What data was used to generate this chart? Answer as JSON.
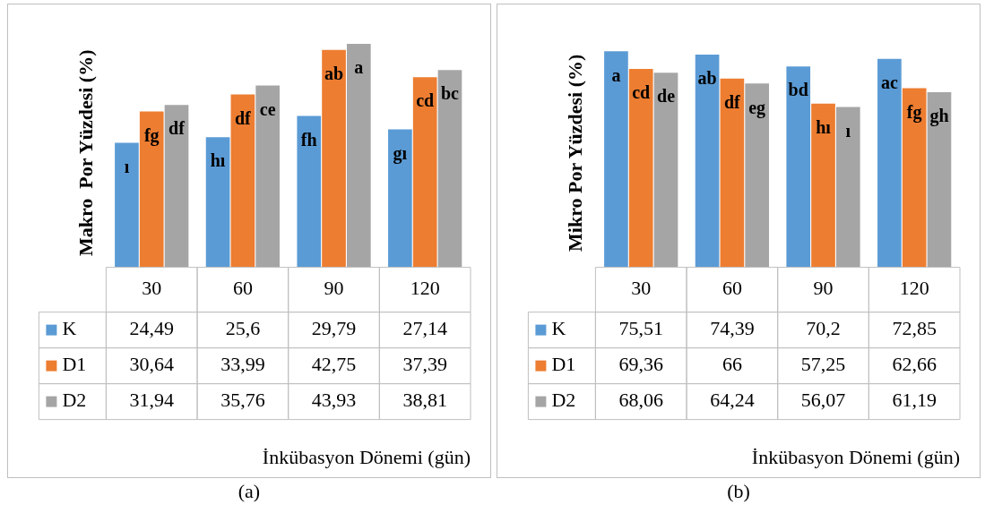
{
  "chart_data": [
    {
      "type": "bar",
      "categories": [
        "30",
        "60",
        "90",
        "120"
      ],
      "ylabel": "Makro  Por Yüzdesi (%)",
      "xlabel": "İnkübasyon Dönemi (gün)",
      "legend": "bottom left",
      "series": [
        {
          "name": "K",
          "color": "#5b9bd5",
          "values": [
            24.49,
            25.6,
            29.79,
            27.14
          ],
          "value_labels": [
            "24,49",
            "25,6",
            "29,79",
            "27,14"
          ]
        },
        {
          "name": "D1",
          "color": "#ed7d31",
          "values": [
            30.64,
            33.99,
            42.75,
            37.39
          ],
          "value_labels": [
            "30,64",
            "33,99",
            "42,75",
            "37,39"
          ]
        },
        {
          "name": "D2",
          "color": "#a5a5a5",
          "values": [
            31.94,
            35.76,
            43.93,
            38.81
          ],
          "value_labels": [
            "31,94",
            "35,76",
            "43,93",
            "38,81"
          ]
        }
      ],
      "annotations": [
        "ı",
        "hı",
        "fh",
        "gı",
        "fg",
        "df",
        "ab",
        "cd",
        "df",
        "ce",
        "a",
        "bc",
        "(a)"
      ]
    },
    {
      "type": "bar",
      "categories": [
        "30",
        "60",
        "90",
        "120"
      ],
      "ylabel": "Mikro Por Yüzdesi (%)",
      "xlabel": "İnkübasyon Dönemi (gün)",
      "legend": "bottom left",
      "series": [
        {
          "name": "K",
          "color": "#5b9bd5",
          "values": [
            75.51,
            74.39,
            70.2,
            72.85
          ],
          "value_labels": [
            "75,51",
            "74,39",
            "70,2",
            "72,85"
          ]
        },
        {
          "name": "D1",
          "color": "#ed7d31",
          "values": [
            69.36,
            66,
            57.25,
            62.66
          ],
          "value_labels": [
            "69,36",
            "66",
            "57,25",
            "62,66"
          ]
        },
        {
          "name": "D2",
          "color": "#a5a5a5",
          "values": [
            68.06,
            64.24,
            56.07,
            61.19
          ],
          "value_labels": [
            "68,06",
            "64,24",
            "56,07",
            "61,19"
          ]
        }
      ],
      "annotations": [
        "a",
        "ab",
        "bd",
        "ac",
        "cd",
        "df",
        "hı",
        "fg",
        "de",
        "eg",
        "ı",
        "gh",
        "(b)"
      ]
    }
  ]
}
